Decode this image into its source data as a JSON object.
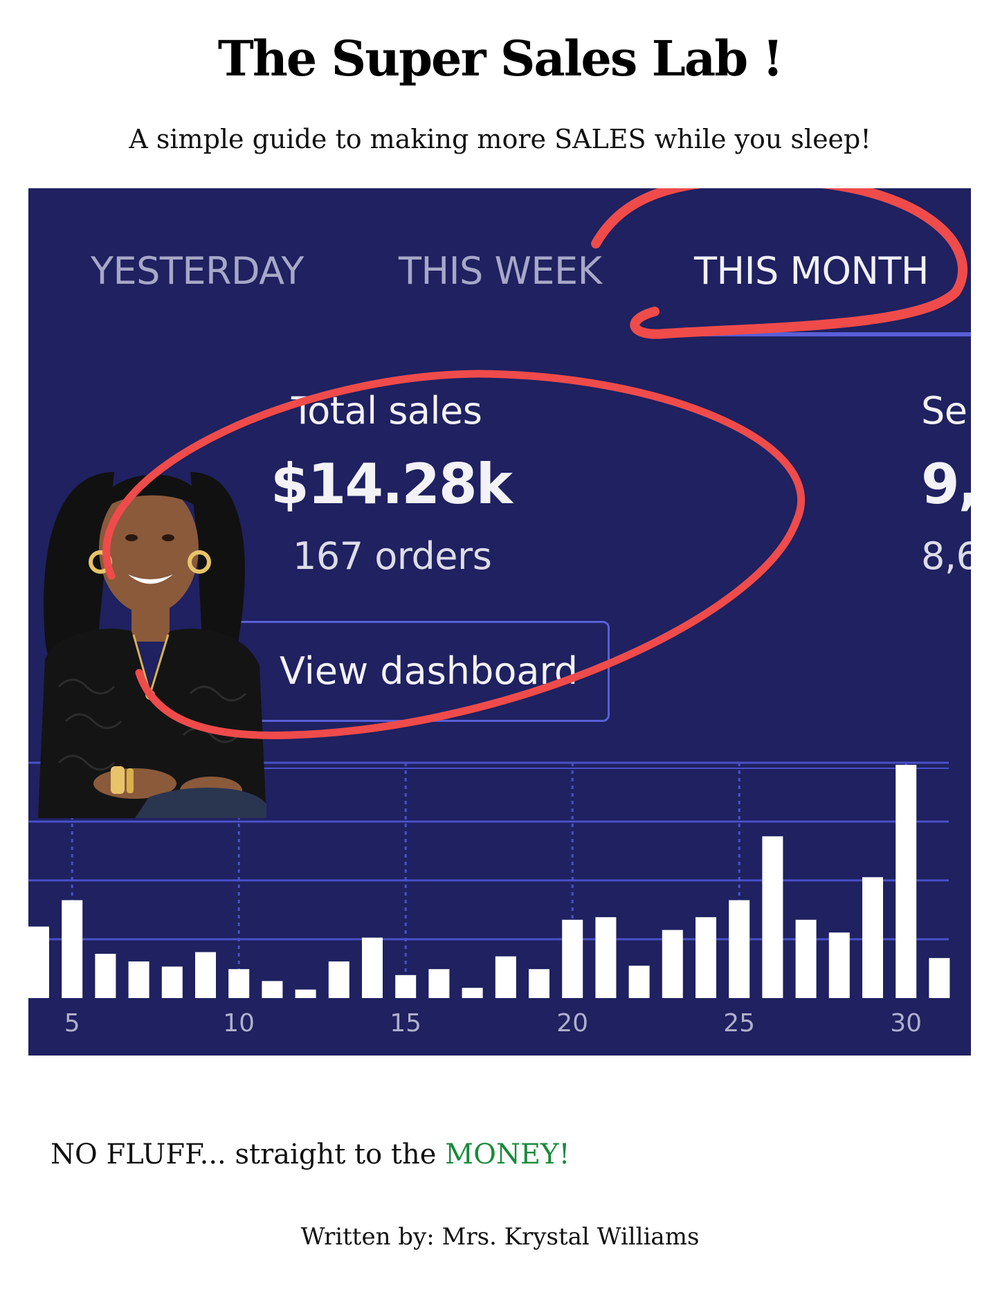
{
  "title": "The Super Sales Lab !",
  "subtitle": {
    "before": "A simple guide to making more ",
    "emphasis": "SALES",
    "after": " while you sleep!"
  },
  "dashboard": {
    "tabs": [
      {
        "label": "YESTERDAY",
        "active": false
      },
      {
        "label": "THIS WEEK",
        "active": false
      },
      {
        "label": "THIS MONTH",
        "active": true
      }
    ],
    "metrics": [
      {
        "label": "Total sales",
        "value": "$14.28k",
        "sub": "167 orders"
      },
      {
        "label": "Se",
        "value": "9,",
        "sub": "8,6"
      }
    ],
    "button_label": "View dashboard",
    "colors": {
      "background": "#1f2160",
      "accent": "#5a5fd6",
      "bars": "#ffffff",
      "annotation": "#ef4b4b"
    }
  },
  "chart_data": {
    "type": "bar",
    "x": [
      4,
      5,
      6,
      7,
      8,
      9,
      10,
      11,
      12,
      13,
      14,
      15,
      16,
      17,
      18,
      19,
      20,
      21,
      22,
      23,
      24,
      25,
      26,
      27,
      28,
      29,
      30,
      31
    ],
    "values": [
      84,
      115,
      52,
      43,
      37,
      54,
      34,
      20,
      10,
      43,
      71,
      27,
      34,
      12,
      49,
      34,
      92,
      95,
      38,
      80,
      95,
      115,
      190,
      92,
      77,
      142,
      274,
      47
    ],
    "x_tick_labels": [
      "5",
      "10",
      "15",
      "20",
      "25",
      "30"
    ],
    "grid": true
  },
  "photo": {
    "description_icon": "woman-portrait",
    "colors": {
      "hair": "#111111",
      "skin": "#8a5a3b",
      "top": "#121212",
      "jeans": "#2a3550"
    }
  },
  "tagline": {
    "before": "NO FLUFF... straight to the ",
    "money": "MONEY!",
    "money_color": "#1a8a3b"
  },
  "author": "Written by: Mrs. Krystal  Williams"
}
